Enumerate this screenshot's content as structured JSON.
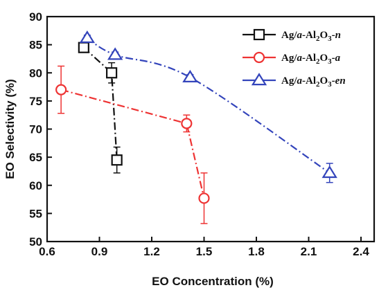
{
  "chart_data": {
    "type": "line",
    "xlabel": "EO Concentration (%)",
    "ylabel": "EO Selectivity (%)",
    "xlim": [
      0.6,
      2.45
    ],
    "ylim": [
      50,
      90
    ],
    "xticks": [
      "0.6",
      "0.9",
      "1.2",
      "1.5",
      "1.8",
      "2.1",
      "2.4"
    ],
    "yticks": [
      "50",
      "55",
      "60",
      "65",
      "70",
      "75",
      "80",
      "85",
      "90"
    ],
    "legend_position": "top-right",
    "series": [
      {
        "legend": {
          "pre": "Ag/",
          "ital": "a",
          "mid": "-Al",
          "s1": "2",
          "o": "O",
          "s2": "3",
          "dash": "-",
          "suffix": "n"
        },
        "color": "#111111",
        "marker": "square",
        "line_style": "dash-dot",
        "points": [
          {
            "x": 0.81,
            "y": 84.5,
            "err": 0.6
          },
          {
            "x": 0.97,
            "y": 80.0,
            "err": 1.8
          },
          {
            "x": 1.0,
            "y": 64.5,
            "err": 2.3
          }
        ]
      },
      {
        "legend": {
          "pre": "Ag/",
          "ital": "a",
          "mid": "-Al",
          "s1": "2",
          "o": "O",
          "s2": "3",
          "dash": "-",
          "suffix": "a"
        },
        "color": "#ee3333",
        "marker": "circle",
        "line_style": "dash-dot",
        "points": [
          {
            "x": 0.68,
            "y": 77.0,
            "err": 4.2
          },
          {
            "x": 1.4,
            "y": 71.0,
            "err": 1.5
          },
          {
            "x": 1.5,
            "y": 57.7,
            "err": 4.5
          }
        ]
      },
      {
        "legend": {
          "pre": "Ag/",
          "ital": "a",
          "mid": "-Al",
          "s1": "2",
          "o": "O",
          "s2": "3",
          "dash": "-",
          "suffix": "en"
        },
        "color": "#3344bb",
        "marker": "triangle",
        "line_style": "dash-dot",
        "curved": true,
        "points": [
          {
            "x": 0.83,
            "y": 86.2,
            "err": 0.5
          },
          {
            "x": 0.99,
            "y": 83.2,
            "err": 0.5
          },
          {
            "x": 1.42,
            "y": 79.2,
            "err": 0.5
          },
          {
            "x": 2.22,
            "y": 62.2,
            "err": 1.7
          }
        ]
      }
    ]
  }
}
